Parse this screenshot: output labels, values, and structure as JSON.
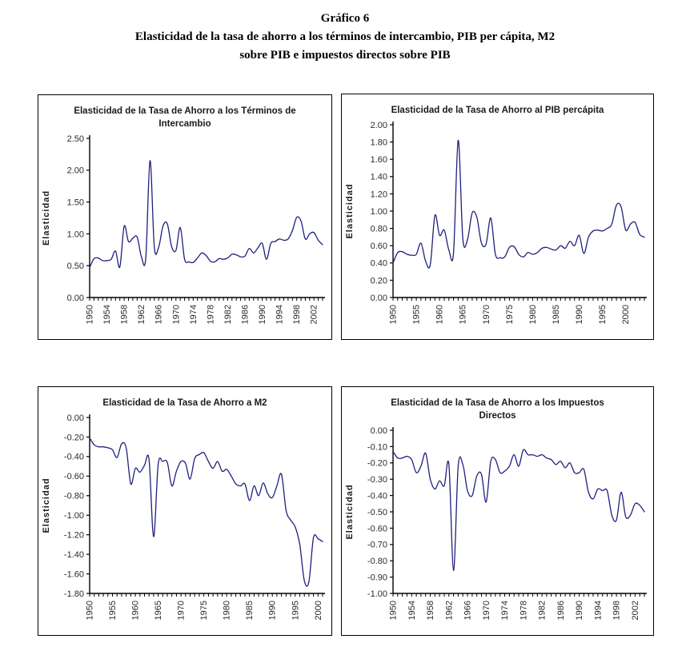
{
  "page": {
    "figure_label": "Gráfico 6",
    "figure_title_line1": "Elasticidad de la tasa de ahorro a los términos de intercambio, PIB per cápita, M2",
    "figure_title_line2": "sobre PIB e impuestos directos sobre PIB"
  },
  "colors": {
    "series_line": "#1f1f7d",
    "axis": "#000000",
    "tick_text": "#2b2b2b",
    "panel_border": "#000000",
    "background": "#ffffff"
  },
  "chart_data": [
    {
      "type": "line",
      "title_lines": [
        "Elasticidad de la Tasa de Ahorro a los Términos de",
        "Intercambio"
      ],
      "ylabel": "Elasticidad",
      "grid": false,
      "legend": "none",
      "x_start": 1950,
      "x_label_ticks": [
        1950,
        1954,
        1958,
        1962,
        1966,
        1970,
        1974,
        1978,
        1982,
        1986,
        1990,
        1994,
        1998,
        2002
      ],
      "ylim": [
        0,
        2.5
      ],
      "y_ticks": [
        0.0,
        0.5,
        1.0,
        1.5,
        2.0,
        2.5
      ],
      "values": [
        0.47,
        0.61,
        0.62,
        0.58,
        0.58,
        0.6,
        0.73,
        0.48,
        1.12,
        0.88,
        0.93,
        0.95,
        0.64,
        0.62,
        2.15,
        0.79,
        0.79,
        1.12,
        1.16,
        0.8,
        0.74,
        1.1,
        0.6,
        0.56,
        0.55,
        0.62,
        0.7,
        0.66,
        0.57,
        0.56,
        0.61,
        0.6,
        0.62,
        0.68,
        0.67,
        0.64,
        0.65,
        0.77,
        0.7,
        0.78,
        0.85,
        0.6,
        0.85,
        0.88,
        0.92,
        0.9,
        0.92,
        1.05,
        1.26,
        1.2,
        0.92,
        1.0,
        1.02,
        0.9,
        0.83
      ]
    },
    {
      "type": "line",
      "title_lines": [
        "Elasticidad de la Tasa de Ahorro al PIB percápita"
      ],
      "ylabel": "Elasticidad",
      "grid": false,
      "legend": "none",
      "x_start": 1950,
      "x_label_ticks": [
        1950,
        1955,
        1960,
        1965,
        1970,
        1975,
        1980,
        1985,
        1990,
        1995,
        2000
      ],
      "ylim": [
        0,
        2.0
      ],
      "y_ticks": [
        0.0,
        0.2,
        0.4,
        0.6,
        0.8,
        1.0,
        1.2,
        1.4,
        1.6,
        1.8,
        2.0
      ],
      "values": [
        0.4,
        0.52,
        0.53,
        0.5,
        0.49,
        0.5,
        0.63,
        0.42,
        0.38,
        0.95,
        0.72,
        0.78,
        0.55,
        0.52,
        1.82,
        0.68,
        0.67,
        0.98,
        0.93,
        0.63,
        0.62,
        0.92,
        0.5,
        0.46,
        0.47,
        0.58,
        0.59,
        0.5,
        0.47,
        0.52,
        0.5,
        0.52,
        0.57,
        0.58,
        0.56,
        0.55,
        0.6,
        0.57,
        0.65,
        0.6,
        0.72,
        0.51,
        0.7,
        0.77,
        0.78,
        0.77,
        0.8,
        0.85,
        1.07,
        1.05,
        0.78,
        0.85,
        0.87,
        0.73,
        0.7
      ]
    },
    {
      "type": "line",
      "title_lines": [
        "Elasticidad de la Tasa de Ahorro a M2"
      ],
      "ylabel": "Elasticidad",
      "grid": false,
      "legend": "none",
      "x_start": 1950,
      "x_label_ticks": [
        1950,
        1955,
        1960,
        1965,
        1970,
        1975,
        1980,
        1985,
        1990,
        1995,
        2000
      ],
      "ylim": [
        -1.8,
        0
      ],
      "y_ticks": [
        0.0,
        -0.2,
        -0.4,
        -0.6,
        -0.8,
        -1.0,
        -1.2,
        -1.4,
        -1.6,
        -1.8
      ],
      "values": [
        -0.21,
        -0.28,
        -0.3,
        -0.3,
        -0.31,
        -0.33,
        -0.41,
        -0.27,
        -0.31,
        -0.68,
        -0.52,
        -0.56,
        -0.49,
        -0.43,
        -1.22,
        -0.48,
        -0.45,
        -0.46,
        -0.7,
        -0.55,
        -0.45,
        -0.47,
        -0.63,
        -0.42,
        -0.38,
        -0.36,
        -0.45,
        -0.52,
        -0.45,
        -0.55,
        -0.53,
        -0.6,
        -0.68,
        -0.7,
        -0.68,
        -0.85,
        -0.7,
        -0.8,
        -0.67,
        -0.78,
        -0.82,
        -0.7,
        -0.58,
        -0.95,
        -1.05,
        -1.12,
        -1.3,
        -1.67,
        -1.68,
        -1.23,
        -1.24,
        -1.27
      ]
    },
    {
      "type": "line",
      "title_lines": [
        "Elasticidad de la Tasa de Ahorro a los Impuestos",
        "Directos"
      ],
      "ylabel": "Elasticidad",
      "grid": false,
      "legend": "none",
      "x_start": 1950,
      "x_label_ticks": [
        1950,
        1954,
        1958,
        1962,
        1966,
        1970,
        1974,
        1978,
        1982,
        1986,
        1990,
        1994,
        1998,
        2002
      ],
      "ylim": [
        -1.0,
        0
      ],
      "y_ticks": [
        0.0,
        -0.1,
        -0.2,
        -0.3,
        -0.4,
        -0.5,
        -0.6,
        -0.7,
        -0.8,
        -0.9,
        -1.0
      ],
      "values": [
        -0.13,
        -0.17,
        -0.17,
        -0.16,
        -0.18,
        -0.26,
        -0.22,
        -0.14,
        -0.3,
        -0.36,
        -0.31,
        -0.34,
        -0.21,
        -0.86,
        -0.22,
        -0.21,
        -0.37,
        -0.4,
        -0.28,
        -0.27,
        -0.44,
        -0.19,
        -0.18,
        -0.26,
        -0.25,
        -0.22,
        -0.15,
        -0.22,
        -0.12,
        -0.15,
        -0.15,
        -0.16,
        -0.15,
        -0.17,
        -0.18,
        -0.21,
        -0.19,
        -0.23,
        -0.2,
        -0.26,
        -0.26,
        -0.24,
        -0.38,
        -0.42,
        -0.36,
        -0.37,
        -0.37,
        -0.52,
        -0.55,
        -0.38,
        -0.53,
        -0.52,
        -0.45,
        -0.46,
        -0.5
      ]
    }
  ]
}
